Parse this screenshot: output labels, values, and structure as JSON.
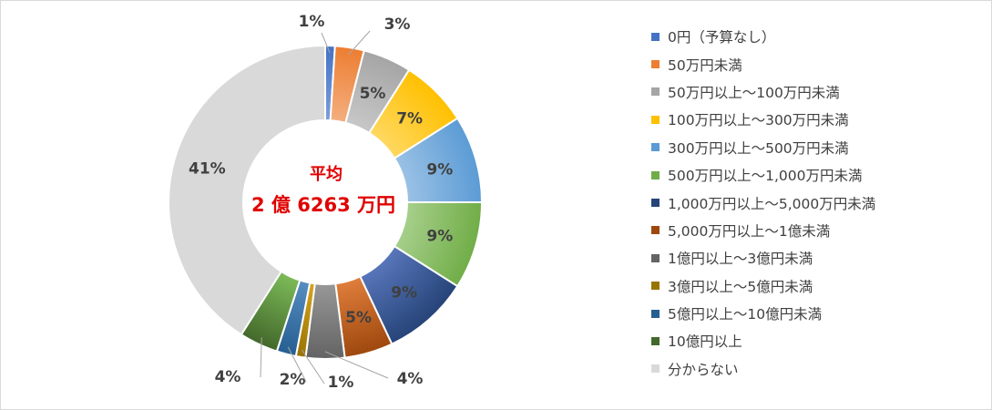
{
  "chart_data": {
    "type": "pie",
    "style": "donut",
    "center_label": [
      "平均",
      "2 億 6263 万円"
    ],
    "legend_position": "right",
    "categories": [
      "0円（予算なし）",
      "50万円未満",
      "50万円以上～100万円未満",
      "100万円以上～300万円未満",
      "300万円以上～500万円未満",
      "500万円以上～1,000万円未満",
      "1,000万円以上～5,000万円未満",
      "5,000万円以上～1億未満",
      "1億円以上～3億円未満",
      "3億円以上～5億円未満",
      "5億円以上～10億円未満",
      "10億円以上",
      "分からない"
    ],
    "values": [
      1,
      3,
      5,
      7,
      9,
      9,
      9,
      5,
      4,
      1,
      2,
      4,
      41
    ],
    "data_labels": [
      "1%",
      "3%",
      "5%",
      "7%",
      "9%",
      "9%",
      "9%",
      "5%",
      "4%",
      "1%",
      "2%",
      "4%",
      "41%"
    ],
    "colors": [
      "#4472c4",
      "#ed7d31",
      "#a5a5a5",
      "#ffc000",
      "#5b9bd5",
      "#70ad47",
      "#264478",
      "#9e480e",
      "#636363",
      "#997300",
      "#255e91",
      "#43682b",
      "#d9d9d9"
    ],
    "colors_light": [
      "#7da0dc",
      "#f4b183",
      "#c9c9c9",
      "#ffd966",
      "#9dc3e6",
      "#a9d18e",
      "#5a78bd",
      "#e2803e",
      "#9a9a9a",
      "#d9a621",
      "#5a8fc3",
      "#7fbf5a",
      "#d9d9d9"
    ]
  }
}
